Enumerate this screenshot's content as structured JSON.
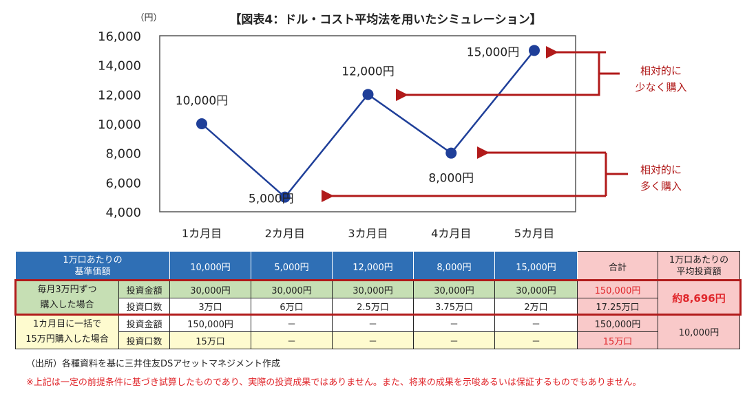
{
  "chart_data": {
    "type": "line",
    "title": "【図表4：ドル・コスト平均法を用いたシミュレーション】",
    "ylabel": "（円）",
    "categories": [
      "1カ月目",
      "2カ月目",
      "3カ月目",
      "4カ月目",
      "5カ月目"
    ],
    "values": [
      10000,
      5000,
      12000,
      8000,
      15000
    ],
    "data_labels": [
      "10,000円",
      "5,000円",
      "12,000円",
      "8,000円",
      "15,000円"
    ],
    "ylim": [
      4000,
      16000
    ],
    "yticks": [
      4000,
      6000,
      8000,
      10000,
      12000,
      14000,
      16000
    ],
    "ytick_labels": [
      "4,000",
      "6,000",
      "8,000",
      "10,000",
      "12,000",
      "14,000",
      "16,000"
    ],
    "series_color": "#1f3f99",
    "annotations": [
      {
        "text_lines": [
          "相対的に",
          "少なく購入"
        ],
        "color": "#b11a1a"
      },
      {
        "text_lines": [
          "相対的に",
          "多く購入"
        ],
        "color": "#b11a1a"
      }
    ]
  },
  "table": {
    "header": {
      "label": "1万口あたりの\n基準価額",
      "prices": [
        "10,000円",
        "5,000円",
        "12,000円",
        "8,000円",
        "15,000円"
      ],
      "total": "合計",
      "avg": "1万口あたりの\n平均投資額"
    },
    "dca": {
      "label": "毎月3万円ずつ\n購入した場合",
      "amount_label": "投資金額",
      "units_label": "投資口数",
      "amounts": [
        "30,000円",
        "30,000円",
        "30,000円",
        "30,000円",
        "30,000円"
      ],
      "units": [
        "3万口",
        "6万口",
        "2.5万口",
        "3.75万口",
        "2万口"
      ],
      "total_amount": "150,000円",
      "total_units": "17.25万口",
      "avg": "約8,696円"
    },
    "lump": {
      "label": "1カ月目に一括で\n15万円購入した場合",
      "amount_label": "投資金額",
      "units_label": "投資口数",
      "amounts": [
        "150,000円",
        "－",
        "－",
        "－",
        "－"
      ],
      "units": [
        "15万口",
        "－",
        "－",
        "－",
        "－"
      ],
      "total_amount": "150,000円",
      "total_units": "15万口",
      "avg": "10,000円"
    }
  },
  "notes": {
    "source": "（出所）各種資料を基に三井住友DSアセットマネジメント作成",
    "disclaimer": "※上記は一定の前提条件に基づき試算したものであり、実際の投資成果ではありません。また、将来の成果を示唆あるいは保証するものでもありません。"
  }
}
